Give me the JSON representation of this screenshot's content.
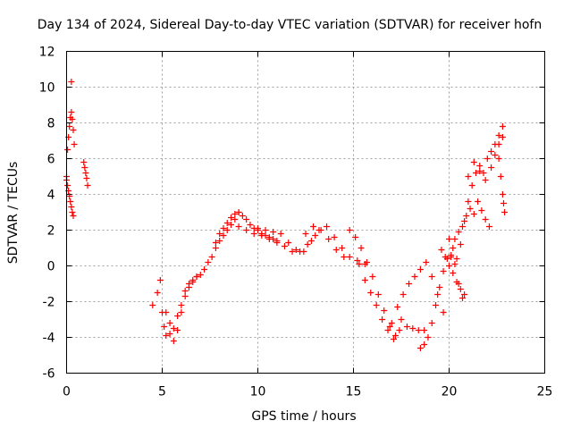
{
  "chart_data": {
    "type": "scatter",
    "title": "Day 134 of 2024, Sidereal Day-to-day VTEC variation (SDTVAR) for receiver hofn",
    "xlabel": "GPS time / hours",
    "ylabel": "SDTVAR / TECUs",
    "xlim": [
      0,
      25
    ],
    "ylim": [
      -6,
      12
    ],
    "x_ticks": [
      0,
      5,
      10,
      15,
      20,
      25
    ],
    "y_ticks": [
      -6,
      -4,
      -2,
      0,
      2,
      4,
      6,
      8,
      10,
      12
    ],
    "grid": true,
    "marker": "+",
    "series": [
      {
        "name": "SDTVAR",
        "color": "#ff0000",
        "tracks": [
          {
            "x": [
              0.0,
              0.05,
              0.1,
              0.15,
              0.2,
              0.25,
              0.3,
              0.35,
              0.4
            ],
            "y": [
              5.0,
              6.5,
              7.2,
              7.8,
              8.3,
              8.6,
              8.2,
              7.6,
              6.8
            ]
          },
          {
            "x": [
              0.0,
              0.05,
              0.1,
              0.15,
              0.2,
              0.25,
              0.3,
              0.35
            ],
            "y": [
              4.8,
              4.5,
              4.2,
              3.9,
              3.6,
              3.3,
              3.0,
              2.8
            ]
          },
          {
            "x": [
              0.25
            ],
            "y": [
              10.3
            ]
          },
          {
            "x": [
              0.9,
              0.95,
              1.0,
              1.05,
              1.1
            ],
            "y": [
              5.8,
              5.5,
              5.2,
              4.9,
              4.5
            ]
          },
          {
            "x": [
              4.5,
              4.75,
              4.9,
              5.0,
              5.1,
              5.2,
              5.4,
              5.6,
              5.8,
              6.0,
              6.2,
              6.4,
              6.6,
              6.8,
              7.0,
              7.2,
              7.4,
              7.6,
              7.8,
              8.0,
              8.2,
              8.4,
              8.6,
              8.8,
              9.0
            ],
            "y": [
              -2.2,
              -1.5,
              -0.8,
              -2.6,
              -3.4,
              -3.9,
              -3.8,
              -3.5,
              -2.8,
              -2.2,
              -1.4,
              -1.0,
              -0.8,
              -0.6,
              -0.5,
              -0.2,
              0.2,
              0.5,
              1.0,
              1.4,
              1.7,
              2.0,
              2.3,
              2.6,
              3.0
            ]
          },
          {
            "x": [
              5.2,
              5.4,
              5.6,
              5.8,
              6.0,
              6.2,
              6.4,
              6.6,
              6.8
            ],
            "y": [
              -2.6,
              -3.2,
              -4.2,
              -3.6,
              -2.6,
              -1.7,
              -1.2,
              -0.9,
              -0.6
            ]
          },
          {
            "x": [
              7.8,
              8.0,
              8.2,
              8.4,
              8.6,
              8.8,
              9.0,
              9.2,
              9.4,
              9.6,
              9.8,
              10.0,
              10.2,
              10.4,
              10.6,
              10.8,
              11.0
            ],
            "y": [
              1.3,
              1.8,
              2.1,
              2.4,
              2.7,
              2.9,
              3.0,
              2.8,
              2.6,
              2.3,
              2.1,
              2.0,
              1.8,
              1.7,
              1.6,
              1.5,
              1.4
            ]
          },
          {
            "x": [
              9.0,
              9.4,
              9.8,
              10.2,
              10.6,
              11.0,
              11.4,
              11.8,
              12.2,
              12.6,
              13.0
            ],
            "y": [
              2.2,
              2.0,
              1.8,
              1.7,
              1.5,
              1.3,
              1.1,
              0.8,
              0.8,
              1.2,
              1.7
            ]
          },
          {
            "x": [
              10.0,
              10.4,
              10.8,
              11.2,
              11.6,
              12.0,
              12.4,
              12.8,
              13.2,
              13.6,
              14.0,
              14.4,
              14.8,
              15.2,
              15.6
            ],
            "y": [
              2.1,
              2.0,
              1.9,
              1.8,
              1.3,
              0.9,
              0.8,
              1.4,
              2.0,
              2.2,
              1.6,
              1.0,
              0.5,
              0.3,
              0.1
            ]
          },
          {
            "x": [
              12.5,
              12.9,
              13.3,
              13.7,
              14.1,
              14.5
            ],
            "y": [
              1.8,
              2.2,
              2.0,
              1.5,
              0.9,
              0.5
            ]
          },
          {
            "x": [
              14.8,
              15.1,
              15.4,
              15.7,
              16.0,
              16.3,
              16.6,
              16.9,
              17.2
            ],
            "y": [
              2.0,
              1.6,
              1.0,
              0.2,
              -0.6,
              -1.6,
              -2.5,
              -3.4,
              -3.9
            ]
          },
          {
            "x": [
              15.3,
              15.6,
              15.9,
              16.2,
              16.5,
              16.8,
              17.1,
              17.4
            ],
            "y": [
              0.1,
              -0.8,
              -1.5,
              -2.2,
              -3.0,
              -3.6,
              -4.1,
              -3.6
            ]
          },
          {
            "x": [
              17.0,
              17.3,
              17.6,
              17.9,
              18.2,
              18.5,
              18.8,
              19.1,
              19.4,
              19.7
            ],
            "y": [
              -3.2,
              -2.3,
              -1.6,
              -1.0,
              -0.6,
              -0.2,
              0.2,
              -0.6,
              -1.6,
              -2.6
            ]
          },
          {
            "x": [
              17.5,
              17.8,
              18.1,
              18.4,
              18.7
            ],
            "y": [
              -3.0,
              -3.4,
              -3.5,
              -3.6,
              -3.6
            ]
          },
          {
            "x": [
              18.5,
              18.7,
              18.9,
              19.1,
              19.3,
              19.5,
              19.7,
              19.9,
              20.1,
              20.3,
              20.5,
              20.7
            ],
            "y": [
              -4.6,
              -4.4,
              -4.0,
              -3.2,
              -2.2,
              -1.2,
              -0.3,
              0.4,
              0.6,
              0.1,
              -1.0,
              -1.8
            ]
          },
          {
            "x": [
              19.6,
              19.8,
              20.0,
              20.2,
              20.4,
              20.6,
              20.8
            ],
            "y": [
              0.9,
              0.5,
              0.0,
              -0.4,
              -0.9,
              -1.3,
              -1.6
            ]
          },
          {
            "x": [
              20.0,
              20.2,
              20.4,
              20.6,
              20.8,
              21.0,
              21.2,
              21.4,
              21.6,
              21.8,
              22.0,
              22.2,
              22.4,
              22.6,
              22.8
            ],
            "y": [
              1.5,
              1.0,
              0.4,
              1.2,
              2.5,
              3.6,
              4.5,
              5.2,
              5.6,
              5.2,
              6.0,
              6.4,
              6.8,
              7.3,
              7.8
            ]
          },
          {
            "x": [
              20.1,
              20.3,
              20.5,
              20.7,
              20.9,
              21.1,
              21.3,
              21.5,
              21.7,
              21.9,
              22.1
            ],
            "y": [
              0.5,
              1.5,
              1.9,
              2.2,
              2.8,
              3.2,
              2.9,
              3.6,
              3.1,
              2.6,
              2.2
            ]
          },
          {
            "x": [
              21.0,
              21.3,
              21.6,
              21.9,
              22.2,
              22.4,
              22.6,
              22.8
            ],
            "y": [
              5.0,
              5.8,
              5.3,
              4.8,
              5.5,
              6.2,
              6.8,
              7.2
            ]
          },
          {
            "x": [
              22.6,
              22.7,
              22.8,
              22.85,
              22.9
            ],
            "y": [
              6.0,
              5.0,
              4.0,
              3.5,
              3.0
            ]
          }
        ]
      }
    ]
  }
}
